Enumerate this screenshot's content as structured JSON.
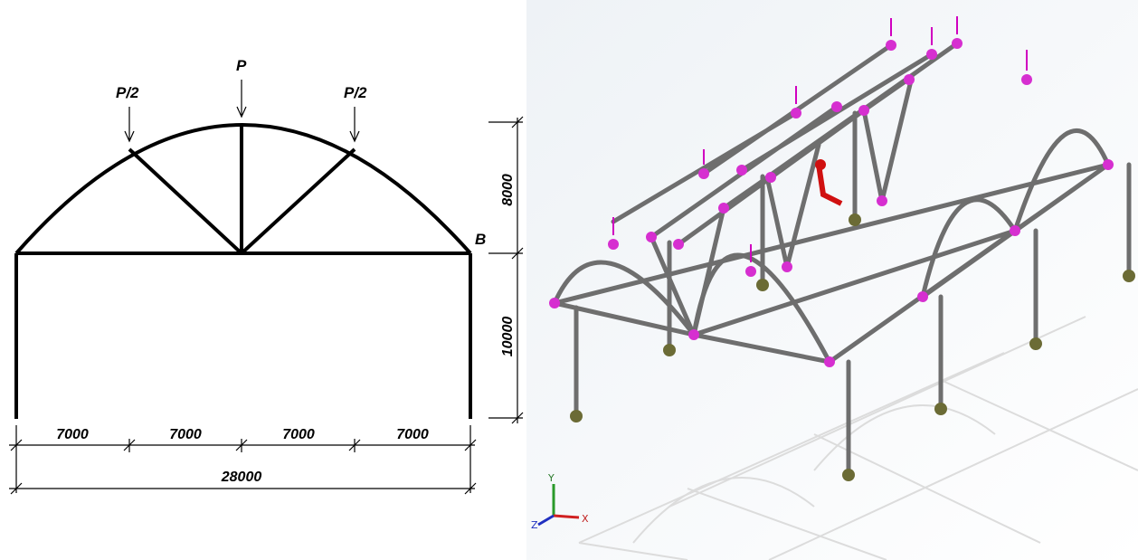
{
  "drawing": {
    "loads": [
      "P/2",
      "P",
      "P/2"
    ],
    "support": "B",
    "span_dimensions": [
      "7000",
      "7000",
      "7000",
      "7000"
    ],
    "total_span": "28000",
    "rise_dimension": "8000",
    "column_dimension": "10000"
  },
  "model_view": {
    "axes": [
      "Y",
      "X",
      "Z"
    ]
  }
}
